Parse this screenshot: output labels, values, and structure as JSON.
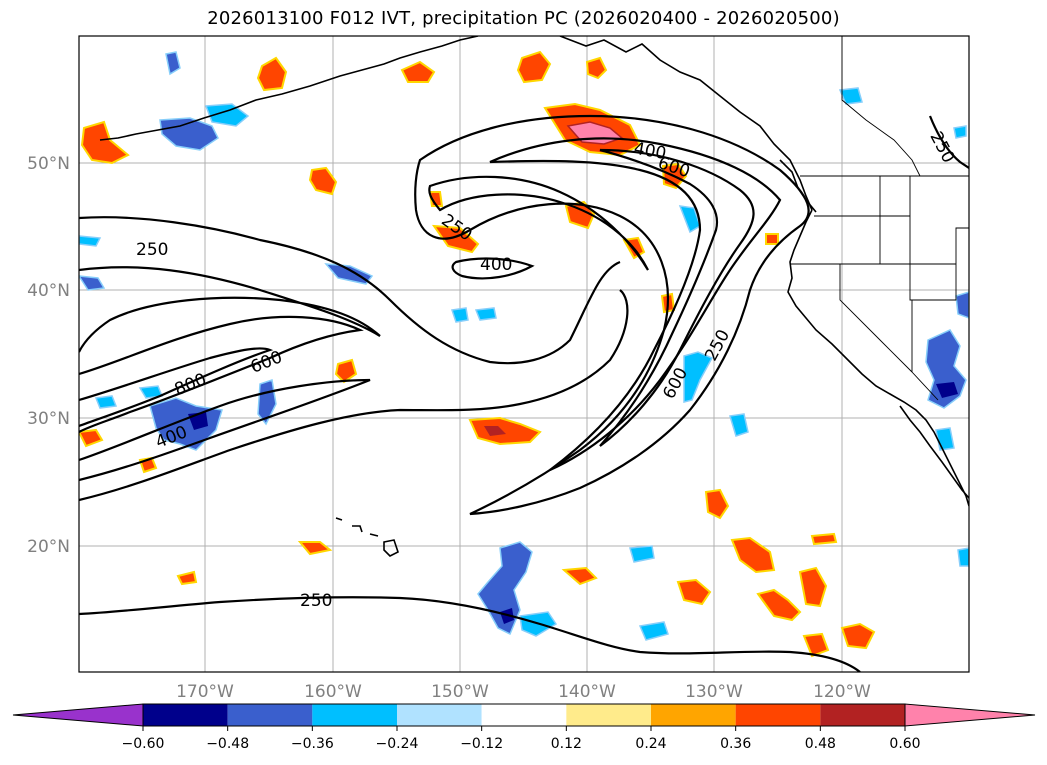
{
  "title": "2026013100 F012 IVT, precipitation PC (2026020400 - 2026020500)",
  "latitude_labels": [
    "50°N",
    "40°N",
    "30°N",
    "20°N"
  ],
  "longitude_labels": [
    "170°W",
    "160°W",
    "150°W",
    "140°W",
    "130°W",
    "120°W"
  ],
  "ivt_contour_labels": [
    "250",
    "400",
    "600",
    "800",
    "400",
    "250",
    "400",
    "600",
    "250",
    "600",
    "250",
    "250"
  ],
  "colorbar": {
    "ticks": [
      "−0.60",
      "−0.48",
      "−0.36",
      "−0.24",
      "−0.12",
      "0.12",
      "0.24",
      "0.36",
      "0.48",
      "0.60"
    ],
    "colors": [
      "#9932cc",
      "#00008b",
      "#3a5fcd",
      "#00bfff",
      "#b0e2ff",
      "#ffffff",
      "#ffeb8b",
      "#ffa500",
      "#ff4500",
      "#b22222",
      "#ff82ab"
    ]
  }
}
